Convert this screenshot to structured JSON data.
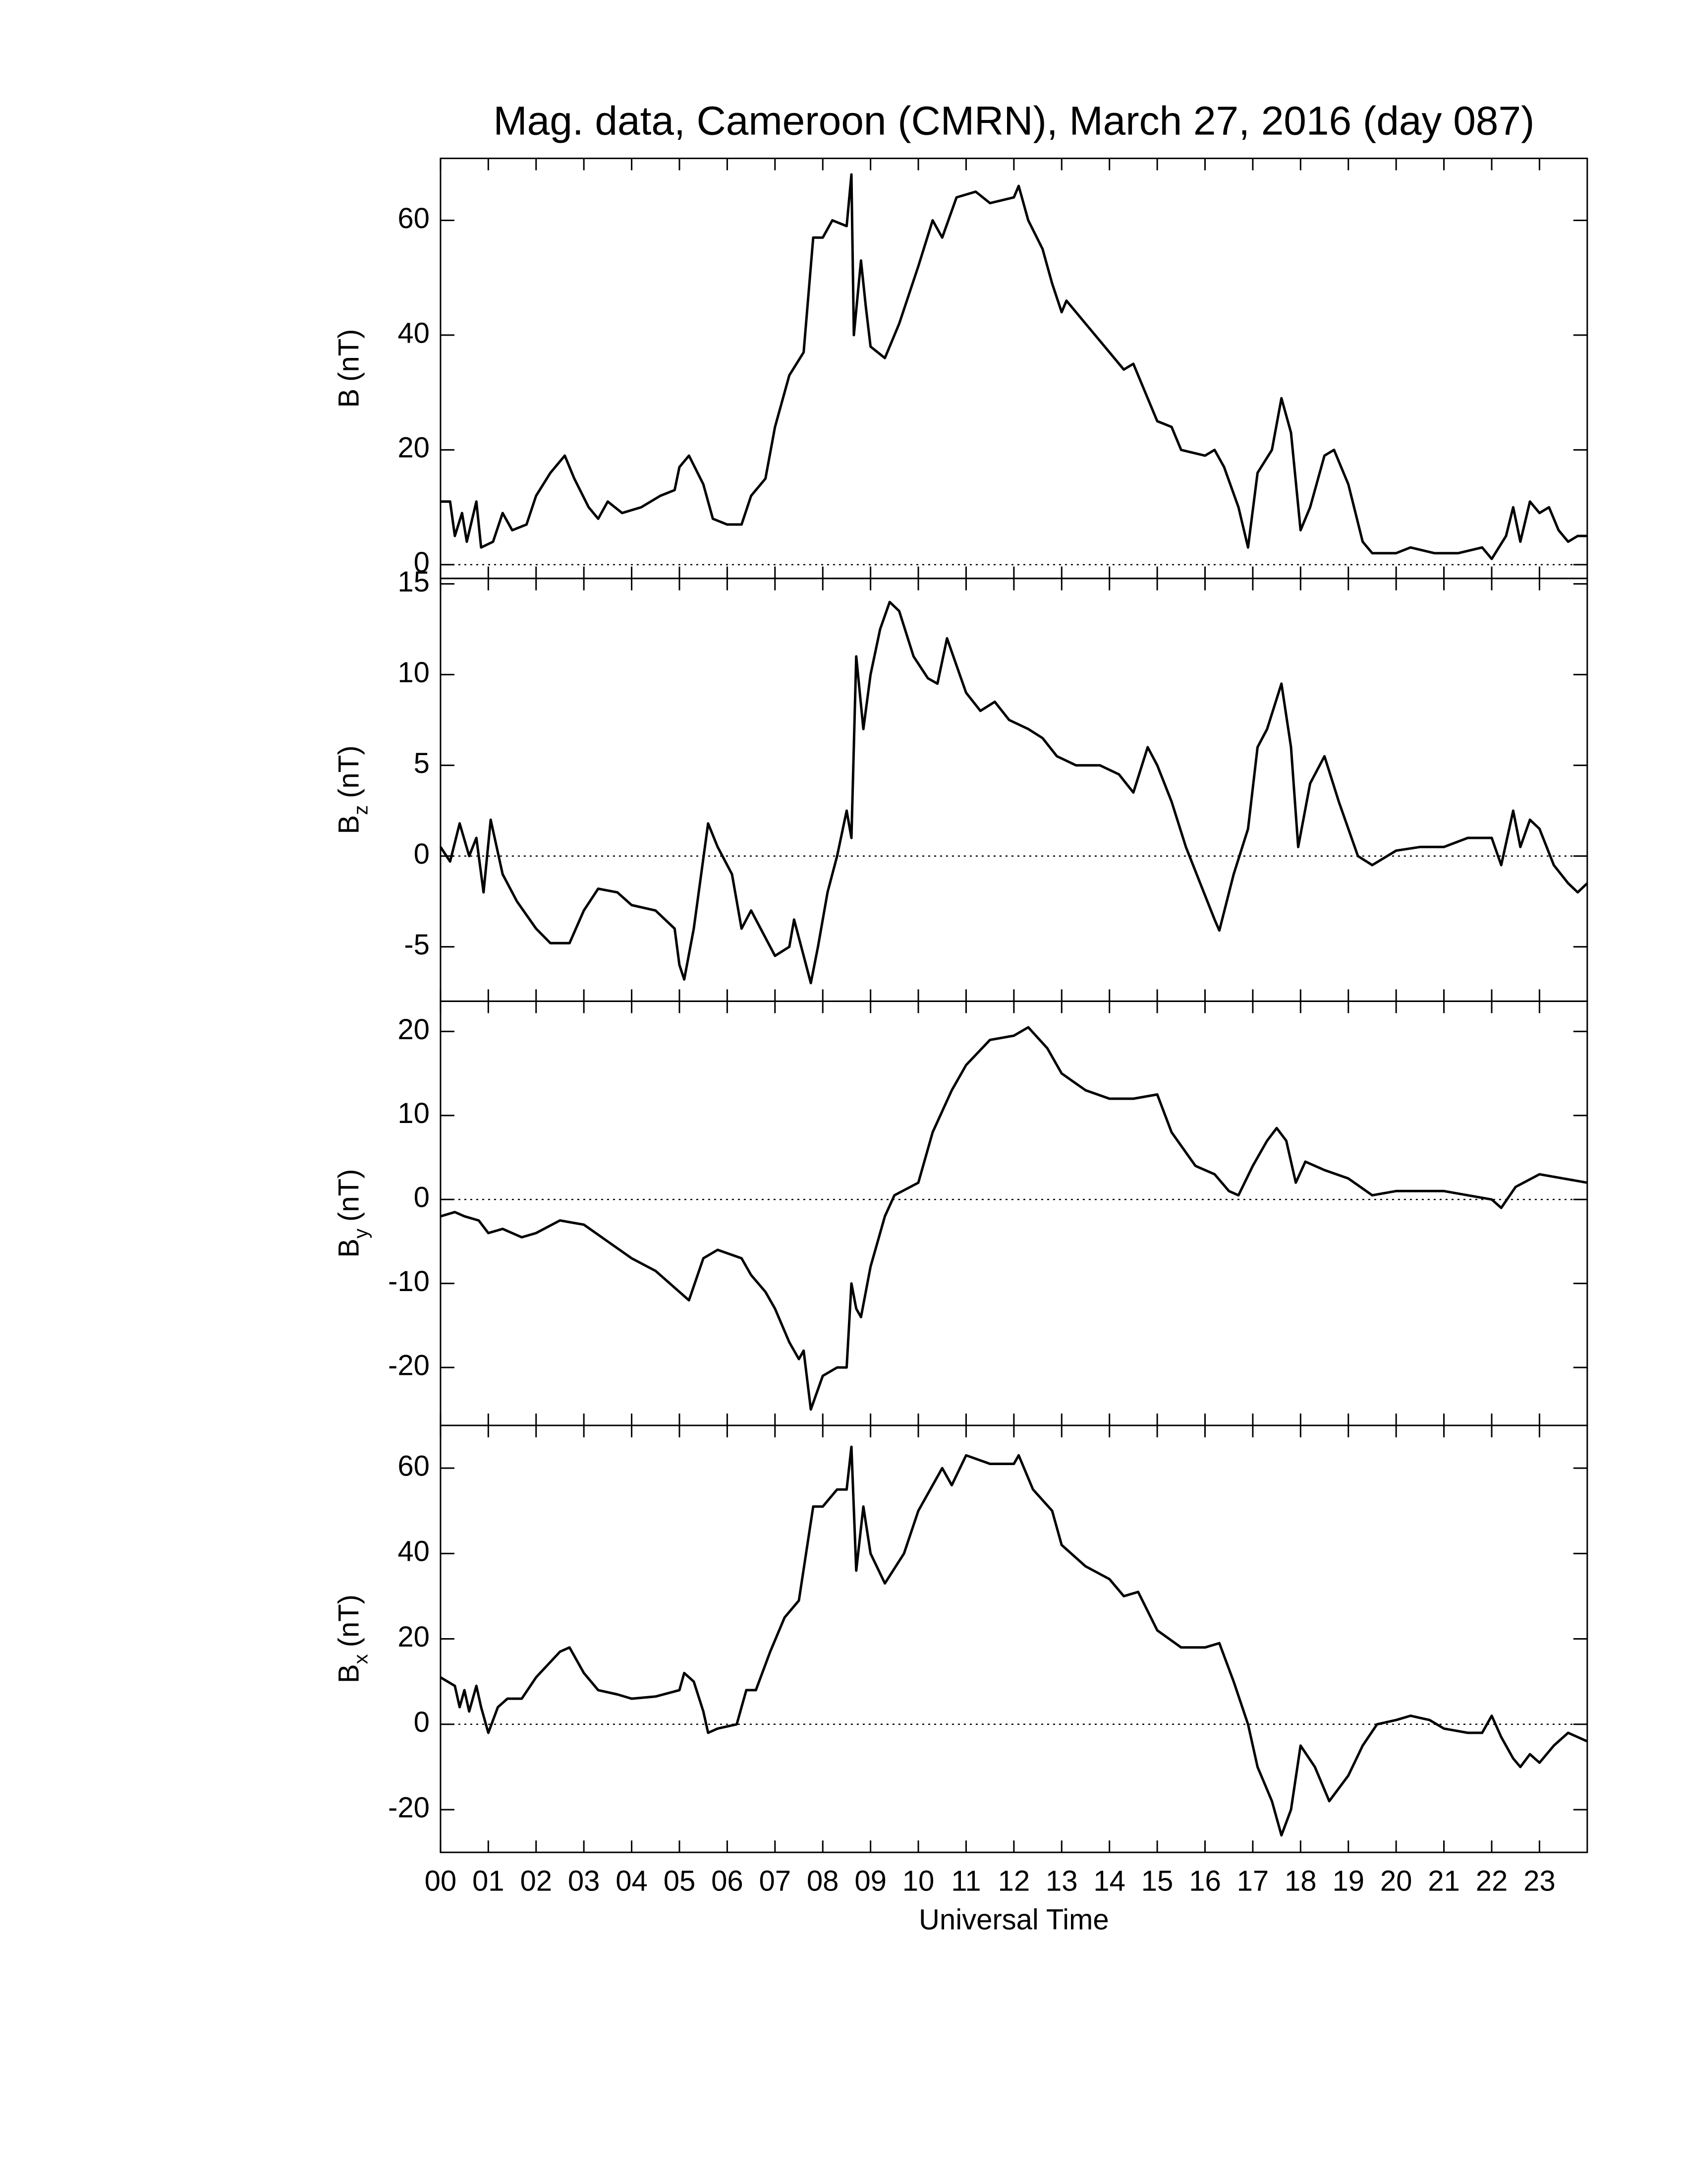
{
  "chart_data": [
    {
      "type": "line",
      "title": "Mag. data, Cameroon (CMRN), March 27, 2016 (day 087)",
      "y_label": {
        "text": "B",
        "unit": "(nT)"
      },
      "xlim": [
        0,
        24
      ],
      "ylim": [
        -2.4,
        70.8
      ],
      "yticks": [
        0,
        20,
        40,
        60
      ],
      "reference_line": 0,
      "color": "#000000",
      "x": [
        0,
        0.2,
        0.3,
        0.45,
        0.55,
        0.75,
        0.85,
        1.1,
        1.3,
        1.5,
        1.8,
        2.0,
        2.3,
        2.6,
        2.8,
        3.1,
        3.3,
        3.5,
        3.8,
        4.2,
        4.6,
        4.9,
        5.0,
        5.2,
        5.5,
        5.7,
        6.0,
        6.3,
        6.5,
        6.8,
        7.0,
        7.3,
        7.6,
        7.8,
        8.0,
        8.2,
        8.5,
        8.6,
        8.65,
        8.8,
        8.9,
        9.0,
        9.3,
        9.6,
        10.0,
        10.3,
        10.5,
        10.8,
        11.2,
        11.5,
        12.0,
        12.1,
        12.3,
        12.6,
        12.8,
        13.0,
        13.1,
        13.5,
        14.0,
        14.3,
        14.5,
        14.8,
        15.0,
        15.3,
        15.5,
        16.0,
        16.2,
        16.4,
        16.7,
        16.9,
        17.1,
        17.4,
        17.6,
        17.8,
        18.0,
        18.2,
        18.5,
        18.7,
        19.0,
        19.3,
        19.5,
        20.0,
        20.3,
        20.8,
        21.3,
        21.8,
        22.0,
        22.3,
        22.45,
        22.6,
        22.8,
        23.0,
        23.2,
        23.4,
        23.6,
        23.8,
        24.0
      ],
      "values": [
        11,
        11,
        5,
        9,
        4,
        11,
        3,
        4,
        9,
        6,
        7,
        12,
        16,
        19,
        15,
        10,
        8,
        11,
        9,
        10,
        12,
        13,
        17,
        19,
        14,
        8,
        7,
        7,
        12,
        15,
        24,
        33,
        37,
        57,
        57,
        60,
        59,
        68,
        40,
        53,
        45,
        38,
        36,
        42,
        52,
        60,
        57,
        64,
        65,
        63,
        64,
        66,
        60,
        55,
        49,
        44,
        46,
        42,
        37,
        34,
        35,
        29,
        25,
        24,
        20,
        19,
        20,
        17,
        10,
        3,
        16,
        20,
        29,
        23,
        6,
        10,
        19,
        20,
        14,
        4,
        2,
        2,
        3,
        2,
        2,
        3,
        1,
        5,
        10,
        4,
        11,
        9,
        10,
        6,
        4,
        5,
        5
      ]
    },
    {
      "type": "line",
      "y_label": {
        "text": "B",
        "subscript": "z",
        "unit": "(nT)"
      },
      "xlim": [
        0,
        24
      ],
      "ylim": [
        -8,
        15.3
      ],
      "yticks": [
        -5,
        0,
        5,
        10,
        15
      ],
      "reference_line": 0,
      "color": "#000000",
      "x": [
        0,
        0.2,
        0.4,
        0.6,
        0.75,
        0.9,
        1.05,
        1.3,
        1.6,
        2.0,
        2.3,
        2.7,
        3.0,
        3.3,
        3.7,
        4.0,
        4.5,
        4.9,
        5.0,
        5.1,
        5.3,
        5.6,
        5.8,
        6.1,
        6.3,
        6.5,
        6.8,
        7.0,
        7.3,
        7.4,
        7.6,
        7.75,
        7.9,
        8.1,
        8.3,
        8.5,
        8.6,
        8.7,
        8.85,
        9.0,
        9.2,
        9.4,
        9.6,
        9.9,
        10.2,
        10.4,
        10.6,
        10.8,
        11.0,
        11.3,
        11.6,
        11.9,
        12.3,
        12.6,
        12.9,
        13.3,
        13.8,
        14.2,
        14.5,
        14.8,
        15.0,
        15.3,
        15.6,
        15.9,
        16.2,
        16.3,
        16.6,
        16.9,
        17.1,
        17.3,
        17.6,
        17.8,
        17.95,
        18.2,
        18.5,
        18.8,
        19.2,
        19.5,
        20.0,
        20.5,
        21.0,
        21.5,
        22.0,
        22.2,
        22.45,
        22.6,
        22.8,
        23.0,
        23.3,
        23.6,
        23.8,
        24.0
      ],
      "values": [
        0.5,
        -0.3,
        1.8,
        0,
        1,
        -2,
        2,
        -1,
        -2.5,
        -4,
        -4.8,
        -4.8,
        -3,
        -1.8,
        -2,
        -2.7,
        -3,
        -4,
        -6,
        -6.8,
        -4,
        1.8,
        0.5,
        -1,
        -4,
        -3,
        -4.5,
        -5.5,
        -5,
        -3.5,
        -5.5,
        -7,
        -5,
        -2,
        0,
        2.5,
        1,
        11,
        7,
        10,
        12.5,
        14,
        13.5,
        11,
        9.8,
        9.5,
        12,
        10.5,
        9,
        8,
        8.5,
        7.5,
        7,
        6.5,
        5.5,
        5,
        5,
        4.5,
        3.5,
        6,
        5,
        3,
        0.5,
        -1.5,
        -3.5,
        -4.1,
        -1,
        1.5,
        6,
        7,
        9.5,
        6,
        0.5,
        4,
        5.5,
        3,
        0,
        -0.5,
        0.3,
        0.5,
        0.5,
        1,
        1,
        -0.5,
        2.5,
        0.5,
        2,
        1.5,
        -0.5,
        -1.5,
        -2,
        -1.5
      ]
    },
    {
      "type": "line",
      "y_label": {
        "text": "B",
        "subscript": "y",
        "unit": "(nT)"
      },
      "xlim": [
        0,
        24
      ],
      "ylim": [
        -26.9,
        23.6
      ],
      "yticks": [
        -20,
        -10,
        0,
        10,
        20
      ],
      "reference_line": 0,
      "color": "#000000",
      "x": [
        0,
        0.3,
        0.5,
        0.8,
        1.0,
        1.3,
        1.7,
        2.0,
        2.5,
        3.0,
        3.5,
        4.0,
        4.5,
        5.0,
        5.2,
        5.5,
        5.8,
        6.3,
        6.5,
        6.8,
        7.0,
        7.3,
        7.5,
        7.6,
        7.75,
        8.0,
        8.3,
        8.5,
        8.6,
        8.7,
        8.8,
        9.0,
        9.3,
        9.5,
        10.0,
        10.3,
        10.7,
        11.0,
        11.5,
        12.0,
        12.3,
        12.7,
        13.0,
        13.5,
        14.0,
        14.5,
        15.0,
        15.3,
        15.8,
        16.2,
        16.5,
        16.7,
        17.0,
        17.3,
        17.5,
        17.7,
        17.9,
        18.1,
        18.5,
        19.0,
        19.5,
        20.0,
        21.0,
        21.5,
        22.0,
        22.2,
        22.5,
        23.0,
        23.5,
        24.0
      ],
      "values": [
        -2,
        -1.5,
        -2,
        -2.5,
        -4,
        -3.5,
        -4.5,
        -4,
        -2.5,
        -3,
        -5,
        -7,
        -8.5,
        -11,
        -12,
        -7,
        -6,
        -7,
        -9,
        -11,
        -13,
        -17,
        -19,
        -18,
        -25,
        -21,
        -20,
        -20,
        -10,
        -13,
        -14,
        -8,
        -2,
        0.5,
        2,
        8,
        13,
        16,
        19,
        19.5,
        20.5,
        18,
        15,
        13,
        12,
        12,
        12.5,
        8,
        4,
        3,
        1,
        0.5,
        4,
        7,
        8.5,
        7,
        2,
        4.5,
        3.5,
        2.5,
        0.5,
        1,
        1,
        0.5,
        0,
        -1,
        1.5,
        3,
        2.5,
        2
      ]
    },
    {
      "type": "line",
      "y_label": {
        "text": "B",
        "subscript": "x",
        "unit": "(nT)"
      },
      "x_label": "Universal Time",
      "xlim": [
        0,
        24
      ],
      "xticks": [
        {
          "value": 0,
          "label": "00"
        },
        {
          "value": 1,
          "label": "01"
        },
        {
          "value": 2,
          "label": "02"
        },
        {
          "value": 3,
          "label": "03"
        },
        {
          "value": 4,
          "label": "04"
        },
        {
          "value": 5,
          "label": "05"
        },
        {
          "value": 6,
          "label": "06"
        },
        {
          "value": 7,
          "label": "07"
        },
        {
          "value": 8,
          "label": "08"
        },
        {
          "value": 9,
          "label": "09"
        },
        10,
        11,
        12,
        13,
        14,
        15,
        16,
        17,
        18,
        19,
        20,
        21,
        22,
        23
      ],
      "ylim": [
        -30,
        70
      ],
      "yticks": [
        -20,
        0,
        20,
        40,
        60
      ],
      "reference_line": 0,
      "color": "#000000",
      "x": [
        0,
        0.3,
        0.4,
        0.5,
        0.6,
        0.75,
        0.85,
        1.0,
        1.2,
        1.4,
        1.7,
        2.0,
        2.5,
        2.7,
        3.0,
        3.3,
        3.7,
        4.0,
        4.5,
        5.0,
        5.1,
        5.3,
        5.5,
        5.6,
        5.8,
        6.2,
        6.4,
        6.6,
        6.9,
        7.2,
        7.5,
        7.8,
        8.0,
        8.3,
        8.5,
        8.6,
        8.7,
        8.85,
        9.0,
        9.3,
        9.7,
        10.0,
        10.5,
        10.7,
        11.0,
        11.5,
        12.0,
        12.1,
        12.4,
        12.8,
        13.0,
        13.5,
        14.0,
        14.3,
        14.6,
        15.0,
        15.5,
        16.0,
        16.3,
        16.6,
        16.9,
        17.1,
        17.4,
        17.6,
        17.8,
        18.0,
        18.3,
        18.6,
        19.0,
        19.3,
        19.6,
        20.0,
        20.3,
        20.7,
        21.0,
        21.5,
        21.8,
        22.0,
        22.2,
        22.45,
        22.6,
        22.8,
        23.0,
        23.3,
        23.6,
        24.0
      ],
      "values": [
        11,
        9,
        4,
        8,
        3,
        9,
        4,
        -2,
        4,
        6,
        6,
        11,
        17,
        18,
        12,
        8,
        7,
        6,
        6.5,
        8,
        12,
        10,
        3,
        -2,
        -1,
        0,
        8,
        8,
        17,
        25,
        29,
        51,
        51,
        55,
        55,
        65,
        36,
        51,
        40,
        33,
        40,
        50,
        60,
        56,
        63,
        61,
        61,
        63,
        55,
        50,
        42,
        37,
        34,
        30,
        31,
        22,
        18,
        18,
        19,
        10,
        0,
        -10,
        -18,
        -26,
        -20,
        -5,
        -10,
        -18,
        -12,
        -5,
        0,
        1,
        2,
        1,
        -1,
        -2,
        -2,
        2,
        -3,
        -8,
        -10,
        -7,
        -9,
        -5,
        -2,
        -4
      ]
    }
  ]
}
